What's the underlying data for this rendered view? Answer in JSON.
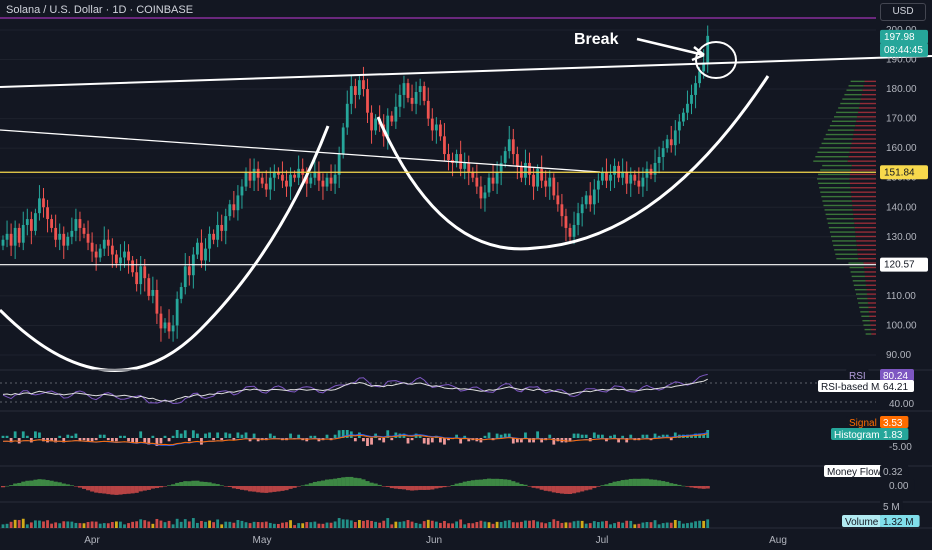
{
  "header": {
    "title": "Solana / U.S. Dollar · 1D · COINBASE",
    "currency_button": "USD"
  },
  "annotation": {
    "text": "Break"
  },
  "chart_data": {
    "type": "candlestick",
    "symbol": "Solana / U.S. Dollar",
    "interval": "1D",
    "exchange": "COINBASE",
    "x_labels": [
      "Apr",
      "May",
      "Jun",
      "Jul",
      "Aug"
    ],
    "y_ticks": [
      90,
      100,
      110,
      120,
      130,
      140,
      150,
      160,
      170,
      180,
      190,
      200
    ],
    "ylim": [
      86,
      203
    ],
    "price_labels": {
      "last": "197.98",
      "countdown": "08:44:45",
      "level_upper": "151.84",
      "level_lower": "120.57"
    },
    "horizontal_levels": [
      151.84,
      120.57
    ],
    "closes": [
      129,
      131,
      127,
      133,
      128,
      134,
      136,
      132,
      138,
      143,
      140,
      136,
      133,
      129,
      131,
      127,
      130,
      132,
      136,
      133,
      131,
      128,
      125,
      123,
      126,
      129,
      127,
      124,
      121,
      123,
      125,
      122,
      118,
      114,
      120,
      116,
      110,
      112,
      104,
      99,
      101,
      98,
      100,
      109,
      113,
      120,
      117,
      124,
      128,
      122,
      126,
      131,
      129,
      134,
      132,
      137,
      141,
      139,
      144,
      147,
      152,
      149,
      153,
      150,
      148,
      146,
      150,
      152,
      151,
      149,
      147,
      151,
      150,
      153,
      151,
      148,
      150,
      152,
      149,
      147,
      150,
      148,
      151,
      158,
      167,
      175,
      181,
      178,
      183,
      180,
      172,
      166,
      170,
      168,
      164,
      171,
      169,
      174,
      178,
      182,
      177,
      175,
      179,
      181,
      176,
      170,
      166,
      168,
      164,
      158,
      156,
      155,
      158,
      153,
      155,
      152,
      150,
      147,
      143,
      145,
      150,
      148,
      152,
      155,
      159,
      163,
      158,
      154,
      150,
      155,
      151,
      147,
      153,
      149,
      147,
      150,
      144,
      141,
      137,
      133,
      130,
      134,
      138,
      141,
      144,
      141,
      146,
      149,
      152,
      149,
      151,
      154,
      150,
      152,
      148,
      151,
      149,
      147,
      150,
      153,
      151,
      155,
      157,
      160,
      163,
      161,
      166,
      169,
      172,
      175,
      178,
      182,
      186,
      189,
      198
    ],
    "volume_axis": {
      "label": "5 M",
      "last": "1.32 M"
    },
    "rsi": {
      "label": "RSI",
      "value": "80.24",
      "ma_label": "RSI-based MA",
      "ma_value": "64.21",
      "axis": "40.00"
    },
    "macd": {
      "signal_label": "Signal",
      "signal_value": "3.53",
      "hist_label": "Histogram",
      "hist_value": "1.83",
      "axis": "-5.00"
    },
    "money_flow": {
      "label": "Money Flow",
      "value": "0.32",
      "axis": "0.00"
    },
    "volume_label": "Volume"
  },
  "colors": {
    "background": "#131722",
    "up": "#26a69a",
    "down": "#ef5350",
    "level_yellow": "#f7d94c",
    "grid": "#1e222d",
    "rsi": "#7e57c2"
  }
}
